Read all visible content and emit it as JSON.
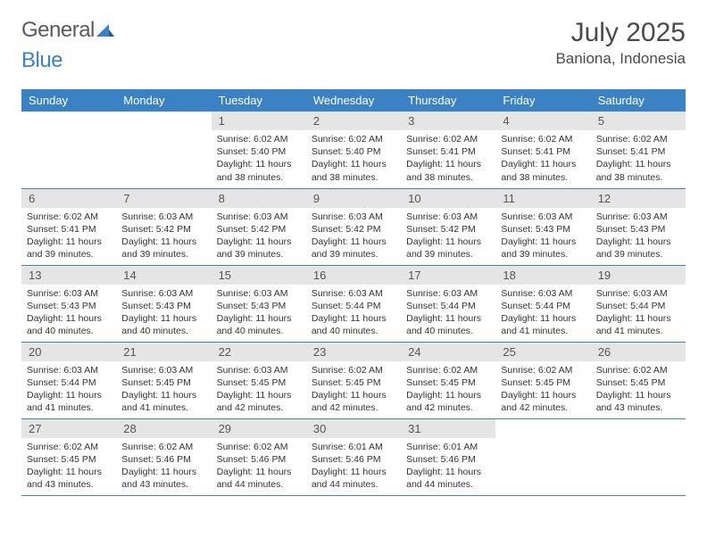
{
  "brand": {
    "word1": "General",
    "word2": "Blue"
  },
  "title": "July 2025",
  "location": "Baniona, Indonesia",
  "colors": {
    "header_bg": "#3b82c4",
    "header_text": "#ffffff",
    "daynum_bg": "#e5e5e5",
    "border": "#3b82c4",
    "body_text": "#333333",
    "brand_gray": "#5a5a5a",
    "brand_blue": "#3b82c4"
  },
  "typography": {
    "title_fontsize": 30,
    "location_fontsize": 17,
    "header_fontsize": 13,
    "daynum_fontsize": 13,
    "content_fontsize": 10.5
  },
  "day_labels": [
    "Sunday",
    "Monday",
    "Tuesday",
    "Wednesday",
    "Thursday",
    "Friday",
    "Saturday"
  ],
  "weeks": [
    [
      {
        "n": "",
        "sr": "",
        "ss": "",
        "dl": ""
      },
      {
        "n": "",
        "sr": "",
        "ss": "",
        "dl": ""
      },
      {
        "n": "1",
        "sr": "Sunrise: 6:02 AM",
        "ss": "Sunset: 5:40 PM",
        "dl": "Daylight: 11 hours and 38 minutes."
      },
      {
        "n": "2",
        "sr": "Sunrise: 6:02 AM",
        "ss": "Sunset: 5:40 PM",
        "dl": "Daylight: 11 hours and 38 minutes."
      },
      {
        "n": "3",
        "sr": "Sunrise: 6:02 AM",
        "ss": "Sunset: 5:41 PM",
        "dl": "Daylight: 11 hours and 38 minutes."
      },
      {
        "n": "4",
        "sr": "Sunrise: 6:02 AM",
        "ss": "Sunset: 5:41 PM",
        "dl": "Daylight: 11 hours and 38 minutes."
      },
      {
        "n": "5",
        "sr": "Sunrise: 6:02 AM",
        "ss": "Sunset: 5:41 PM",
        "dl": "Daylight: 11 hours and 38 minutes."
      }
    ],
    [
      {
        "n": "6",
        "sr": "Sunrise: 6:02 AM",
        "ss": "Sunset: 5:41 PM",
        "dl": "Daylight: 11 hours and 39 minutes."
      },
      {
        "n": "7",
        "sr": "Sunrise: 6:03 AM",
        "ss": "Sunset: 5:42 PM",
        "dl": "Daylight: 11 hours and 39 minutes."
      },
      {
        "n": "8",
        "sr": "Sunrise: 6:03 AM",
        "ss": "Sunset: 5:42 PM",
        "dl": "Daylight: 11 hours and 39 minutes."
      },
      {
        "n": "9",
        "sr": "Sunrise: 6:03 AM",
        "ss": "Sunset: 5:42 PM",
        "dl": "Daylight: 11 hours and 39 minutes."
      },
      {
        "n": "10",
        "sr": "Sunrise: 6:03 AM",
        "ss": "Sunset: 5:42 PM",
        "dl": "Daylight: 11 hours and 39 minutes."
      },
      {
        "n": "11",
        "sr": "Sunrise: 6:03 AM",
        "ss": "Sunset: 5:43 PM",
        "dl": "Daylight: 11 hours and 39 minutes."
      },
      {
        "n": "12",
        "sr": "Sunrise: 6:03 AM",
        "ss": "Sunset: 5:43 PM",
        "dl": "Daylight: 11 hours and 39 minutes."
      }
    ],
    [
      {
        "n": "13",
        "sr": "Sunrise: 6:03 AM",
        "ss": "Sunset: 5:43 PM",
        "dl": "Daylight: 11 hours and 40 minutes."
      },
      {
        "n": "14",
        "sr": "Sunrise: 6:03 AM",
        "ss": "Sunset: 5:43 PM",
        "dl": "Daylight: 11 hours and 40 minutes."
      },
      {
        "n": "15",
        "sr": "Sunrise: 6:03 AM",
        "ss": "Sunset: 5:43 PM",
        "dl": "Daylight: 11 hours and 40 minutes."
      },
      {
        "n": "16",
        "sr": "Sunrise: 6:03 AM",
        "ss": "Sunset: 5:44 PM",
        "dl": "Daylight: 11 hours and 40 minutes."
      },
      {
        "n": "17",
        "sr": "Sunrise: 6:03 AM",
        "ss": "Sunset: 5:44 PM",
        "dl": "Daylight: 11 hours and 40 minutes."
      },
      {
        "n": "18",
        "sr": "Sunrise: 6:03 AM",
        "ss": "Sunset: 5:44 PM",
        "dl": "Daylight: 11 hours and 41 minutes."
      },
      {
        "n": "19",
        "sr": "Sunrise: 6:03 AM",
        "ss": "Sunset: 5:44 PM",
        "dl": "Daylight: 11 hours and 41 minutes."
      }
    ],
    [
      {
        "n": "20",
        "sr": "Sunrise: 6:03 AM",
        "ss": "Sunset: 5:44 PM",
        "dl": "Daylight: 11 hours and 41 minutes."
      },
      {
        "n": "21",
        "sr": "Sunrise: 6:03 AM",
        "ss": "Sunset: 5:45 PM",
        "dl": "Daylight: 11 hours and 41 minutes."
      },
      {
        "n": "22",
        "sr": "Sunrise: 6:03 AM",
        "ss": "Sunset: 5:45 PM",
        "dl": "Daylight: 11 hours and 42 minutes."
      },
      {
        "n": "23",
        "sr": "Sunrise: 6:02 AM",
        "ss": "Sunset: 5:45 PM",
        "dl": "Daylight: 11 hours and 42 minutes."
      },
      {
        "n": "24",
        "sr": "Sunrise: 6:02 AM",
        "ss": "Sunset: 5:45 PM",
        "dl": "Daylight: 11 hours and 42 minutes."
      },
      {
        "n": "25",
        "sr": "Sunrise: 6:02 AM",
        "ss": "Sunset: 5:45 PM",
        "dl": "Daylight: 11 hours and 42 minutes."
      },
      {
        "n": "26",
        "sr": "Sunrise: 6:02 AM",
        "ss": "Sunset: 5:45 PM",
        "dl": "Daylight: 11 hours and 43 minutes."
      }
    ],
    [
      {
        "n": "27",
        "sr": "Sunrise: 6:02 AM",
        "ss": "Sunset: 5:45 PM",
        "dl": "Daylight: 11 hours and 43 minutes."
      },
      {
        "n": "28",
        "sr": "Sunrise: 6:02 AM",
        "ss": "Sunset: 5:46 PM",
        "dl": "Daylight: 11 hours and 43 minutes."
      },
      {
        "n": "29",
        "sr": "Sunrise: 6:02 AM",
        "ss": "Sunset: 5:46 PM",
        "dl": "Daylight: 11 hours and 44 minutes."
      },
      {
        "n": "30",
        "sr": "Sunrise: 6:01 AM",
        "ss": "Sunset: 5:46 PM",
        "dl": "Daylight: 11 hours and 44 minutes."
      },
      {
        "n": "31",
        "sr": "Sunrise: 6:01 AM",
        "ss": "Sunset: 5:46 PM",
        "dl": "Daylight: 11 hours and 44 minutes."
      },
      {
        "n": "",
        "sr": "",
        "ss": "",
        "dl": ""
      },
      {
        "n": "",
        "sr": "",
        "ss": "",
        "dl": ""
      }
    ]
  ]
}
